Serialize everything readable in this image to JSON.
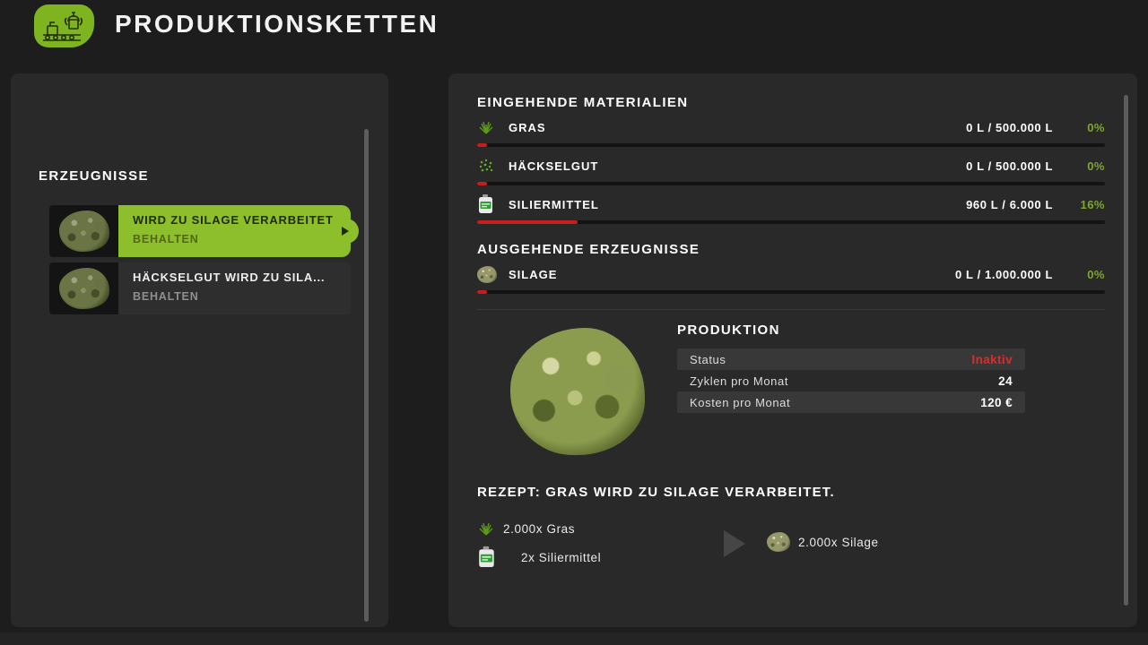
{
  "header": {
    "title": "PRODUKTIONSKETTEN"
  },
  "sidebar": {
    "title": "ERZEUGNISSE",
    "items": [
      {
        "title": "WIRD ZU SILAGE VERARBEITET",
        "subtitle": "BEHALTEN"
      },
      {
        "title": "HÄCKSELGUT WIRD ZU SILA...",
        "subtitle": "BEHALTEN"
      }
    ]
  },
  "inputs": {
    "title": "EINGEHENDE MATERIALIEN",
    "rows": [
      {
        "icon": "grass-icon",
        "label": "GRAS",
        "amount": "0 L / 500.000 L",
        "percent": "0%",
        "fill": 1.5
      },
      {
        "icon": "chaff-icon",
        "label": "HÄCKSELGUT",
        "amount": "0 L / 500.000 L",
        "percent": "0%",
        "fill": 1.5
      },
      {
        "icon": "silage-additive-icon",
        "label": "SILIERMITTEL",
        "amount": "960 L / 6.000 L",
        "percent": "16%",
        "fill": 16
      }
    ]
  },
  "outputs": {
    "title": "AUSGEHENDE ERZEUGNISSE",
    "rows": [
      {
        "icon": "silage-icon",
        "label": "SILAGE",
        "amount": "0 L / 1.000.000 L",
        "percent": "0%",
        "fill": 1.5
      }
    ]
  },
  "production": {
    "title": "PRODUKTION",
    "rows": [
      {
        "label": "Status",
        "value": "Inaktiv",
        "value_color": "#dd2b2b"
      },
      {
        "label": "Zyklen pro Monat",
        "value": "24",
        "value_color": "#ffffff"
      },
      {
        "label": "Kosten pro Monat",
        "value": "120 €",
        "value_color": "#ffffff"
      }
    ]
  },
  "recipe": {
    "title": "REZEPT: GRAS WIRD ZU SILAGE VERARBEITET.",
    "ingredients": [
      {
        "icon": "grass-icon",
        "text": "2.000x Gras"
      },
      {
        "icon": "silage-additive-icon",
        "text": "2x Siliermittel"
      }
    ],
    "output": {
      "icon": "silage-icon",
      "text": "2.000x Silage"
    }
  },
  "colors": {
    "accent_green": "#8dbe2b",
    "percent_green": "#7ea72b",
    "bar_red": "#c41e1e",
    "status_red": "#dd2b2b",
    "panel_bg": "#292929",
    "page_bg": "#1d1d1d"
  }
}
